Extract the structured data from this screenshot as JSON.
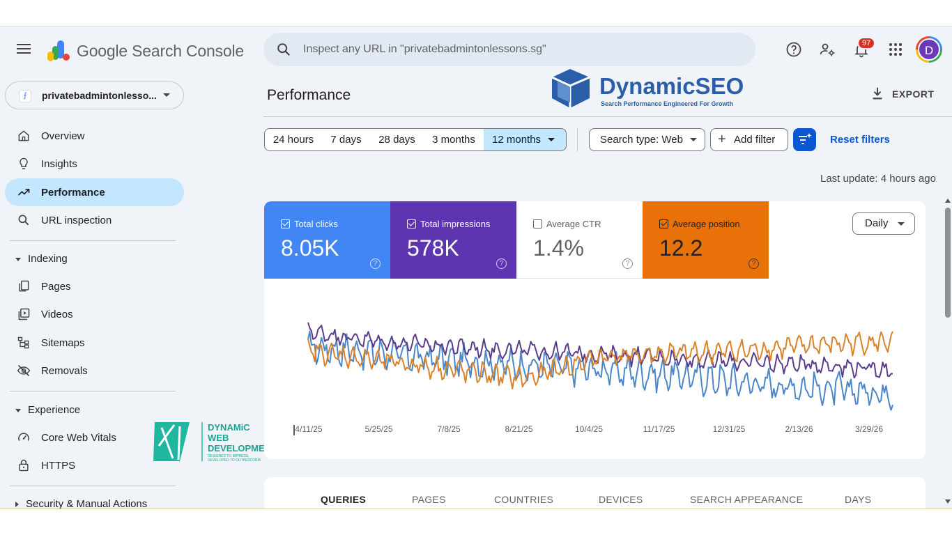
{
  "app": {
    "name": "Google Search Console"
  },
  "search": {
    "placeholder": "Inspect any URL in \"privatebadmintonlessons.sg\""
  },
  "header": {
    "notification_count": "97",
    "avatar_letter": "D"
  },
  "property": {
    "name": "privatebadmintonlesso..."
  },
  "sidebar": {
    "items": [
      {
        "label": "Overview",
        "icon": "home-icon"
      },
      {
        "label": "Insights",
        "icon": "lightbulb-icon"
      },
      {
        "label": "Performance",
        "icon": "trending-up-icon",
        "active": true
      },
      {
        "label": "URL inspection",
        "icon": "search-icon"
      }
    ],
    "indexing": {
      "label": "Indexing",
      "items": [
        {
          "label": "Pages",
          "icon": "pages-icon"
        },
        {
          "label": "Videos",
          "icon": "video-icon"
        },
        {
          "label": "Sitemaps",
          "icon": "sitemap-icon"
        },
        {
          "label": "Removals",
          "icon": "eye-off-icon"
        }
      ]
    },
    "experience": {
      "label": "Experience",
      "items": [
        {
          "label": "Core Web Vitals",
          "icon": "gauge-icon"
        },
        {
          "label": "HTTPS",
          "icon": "lock-icon"
        }
      ]
    },
    "security": {
      "label": "Security & Manual Actions"
    }
  },
  "page": {
    "title": "Performance",
    "export_label": "EXPORT"
  },
  "watermarks": {
    "dynamic_seo": {
      "name": "DynamicSEO",
      "tagline": "Search Performance Engineered For Growth"
    },
    "dynamic_web": {
      "line1": "DYNAMiC",
      "line2": "WEB",
      "line3": "DEVELOPMENT",
      "tagline1": "DESIGNED TO IMPRESS,",
      "tagline2": "DEVELOPED TO OUTPERFORM"
    }
  },
  "filters": {
    "ranges": [
      "24 hours",
      "7 days",
      "28 days",
      "3 months",
      "12 months"
    ],
    "selected_range": "12 months",
    "search_type": "Search type: Web",
    "add_filter": "Add filter",
    "reset": "Reset filters"
  },
  "last_update": "Last update: 4 hours ago",
  "metrics": [
    {
      "label": "Total clicks",
      "value": "8.05K",
      "checked": true,
      "bg": "#4285f4",
      "fg": "#ffffff"
    },
    {
      "label": "Total impressions",
      "value": "578K",
      "checked": true,
      "bg": "#5e35b1",
      "fg": "#ffffff"
    },
    {
      "label": "Average CTR",
      "value": "1.4%",
      "checked": false,
      "bg": "#ffffff",
      "fg": "#5f6368"
    },
    {
      "label": "Average position",
      "value": "12.2",
      "checked": true,
      "bg": "#e8710a",
      "fg": "#202124"
    }
  ],
  "granularity": "Daily",
  "chart_data": {
    "type": "line",
    "x_ticks": [
      "4/11/25",
      "5/25/25",
      "7/8/25",
      "8/21/25",
      "10/4/25",
      "11/17/25",
      "12/31/25",
      "2/13/26",
      "3/29/26"
    ],
    "series": [
      {
        "name": "Total clicks",
        "color": "#4a86c8",
        "trend": [
          0.58,
          0.53,
          0.47,
          0.43,
          0.4,
          0.36,
          0.3,
          0.25,
          0.22
        ],
        "noise": 0.09
      },
      {
        "name": "Total impressions",
        "color": "#5b3c8c",
        "trend": [
          0.7,
          0.62,
          0.58,
          0.55,
          0.52,
          0.49,
          0.46,
          0.44,
          0.4
        ],
        "noise": 0.05
      },
      {
        "name": "Average position",
        "color": "#d9822b",
        "trend": [
          0.55,
          0.47,
          0.4,
          0.33,
          0.5,
          0.53,
          0.55,
          0.6,
          0.62
        ],
        "noise": 0.06
      }
    ],
    "points": 350,
    "xlabel": "",
    "ylabel": "",
    "grid": false
  },
  "tabs": [
    "QUERIES",
    "PAGES",
    "COUNTRIES",
    "DEVICES",
    "SEARCH APPEARANCE",
    "DAYS"
  ],
  "active_tab": "QUERIES"
}
